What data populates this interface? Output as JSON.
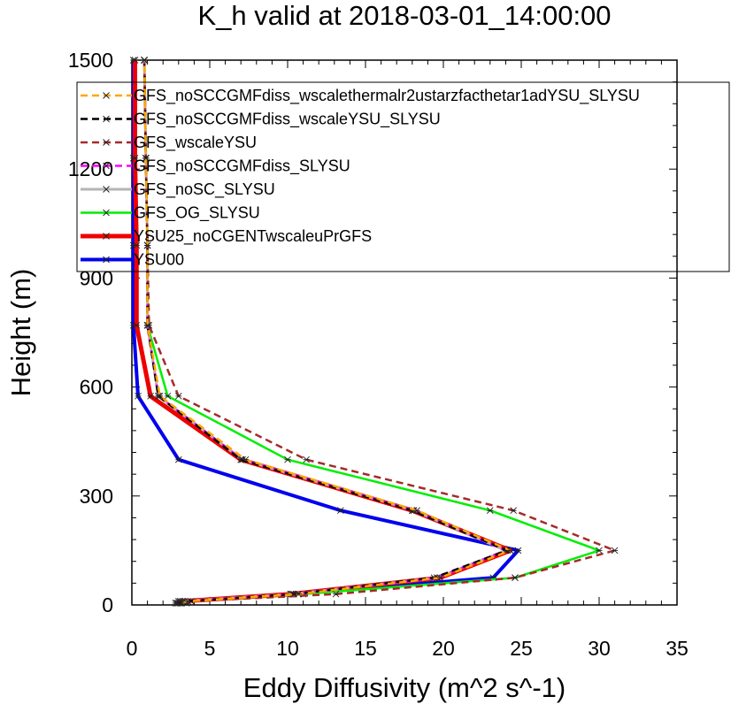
{
  "chart_data": {
    "type": "line",
    "title": "K_h valid at 2018-03-01_14:00:00",
    "xlabel": "Eddy Diffusivity (m^2 s^-1)",
    "ylabel": "Height (m)",
    "xlim": [
      0,
      35
    ],
    "ylim": [
      0,
      1500
    ],
    "xticks": [
      "0",
      "5",
      "10",
      "15",
      "20",
      "25",
      "30",
      "35"
    ],
    "yticks": [
      "0",
      "300",
      "600",
      "900",
      "1200",
      "1500"
    ],
    "legend_position": "top-right",
    "y_levels": [
      5,
      10,
      30,
      75,
      150,
      260,
      400,
      575,
      770,
      990,
      1230,
      1500
    ],
    "series": [
      {
        "name": "GFS_noSCCGMFdiss_wscalethermalr2ustarzfacthetar1adYSU_SLYSU",
        "color": "#ffa500",
        "dash": "8,5",
        "width": 2.5,
        "values": [
          3.2,
          3.6,
          10.7,
          19.8,
          24.3,
          18.3,
          7.3,
          1.8,
          1.0,
          1.0,
          0.9,
          0.8
        ]
      },
      {
        "name": "GFS_noSCCGMFdiss_wscaleYSU_SLYSU",
        "color": "#000000",
        "dash": "8,5",
        "width": 2.5,
        "values": [
          3.0,
          3.3,
          10.4,
          19.4,
          24.1,
          18.0,
          7.0,
          1.7,
          1.0,
          1.0,
          0.9,
          0.8
        ]
      },
      {
        "name": "GFS_wscaleYSU",
        "color": "#a52a2a",
        "dash": "8,5",
        "width": 2.5,
        "values": [
          3.5,
          3.8,
          13.1,
          24.6,
          31.0,
          24.5,
          11.2,
          3.0,
          1.1,
          1.0,
          0.9,
          0.8
        ]
      },
      {
        "name": "GFS_noSCCGMFdiss_SLYSU",
        "color": "#ff00ff",
        "dash": "8,5",
        "width": 2.5,
        "values": [
          2.9,
          3.1,
          10.3,
          19.6,
          24.0,
          18.1,
          7.1,
          1.7,
          1.0,
          1.0,
          0.9,
          0.8
        ]
      },
      {
        "name": "GFS_noSC_SLYSU",
        "color": "#b4b4b4",
        "dash": "",
        "width": 3,
        "values": [
          2.9,
          3.1,
          10.3,
          19.6,
          24.0,
          18.1,
          7.1,
          1.7,
          1.0,
          1.0,
          0.9,
          0.8
        ]
      },
      {
        "name": "GFS_OG_SLYSU",
        "color": "#00ee00",
        "dash": "",
        "width": 2.5,
        "values": [
          3.1,
          3.4,
          11.0,
          24.6,
          30.0,
          23.0,
          10.0,
          2.3,
          1.0,
          1.0,
          0.9,
          0.8
        ]
      },
      {
        "name": "YSU25_noCGENTwscaleuPrGFS",
        "color": "#ee0000",
        "dash": "",
        "width": 5,
        "values": [
          2.9,
          3.2,
          10.2,
          19.8,
          24.3,
          18.0,
          7.0,
          1.2,
          0.3,
          0.3,
          0.2,
          0.2
        ]
      },
      {
        "name": "YSU00",
        "color": "#0000ee",
        "dash": "",
        "width": 4,
        "values": [
          2.8,
          3.0,
          10.2,
          23.2,
          24.8,
          13.4,
          3.0,
          0.4,
          0.1,
          0.1,
          0.1,
          0.1
        ]
      }
    ]
  }
}
